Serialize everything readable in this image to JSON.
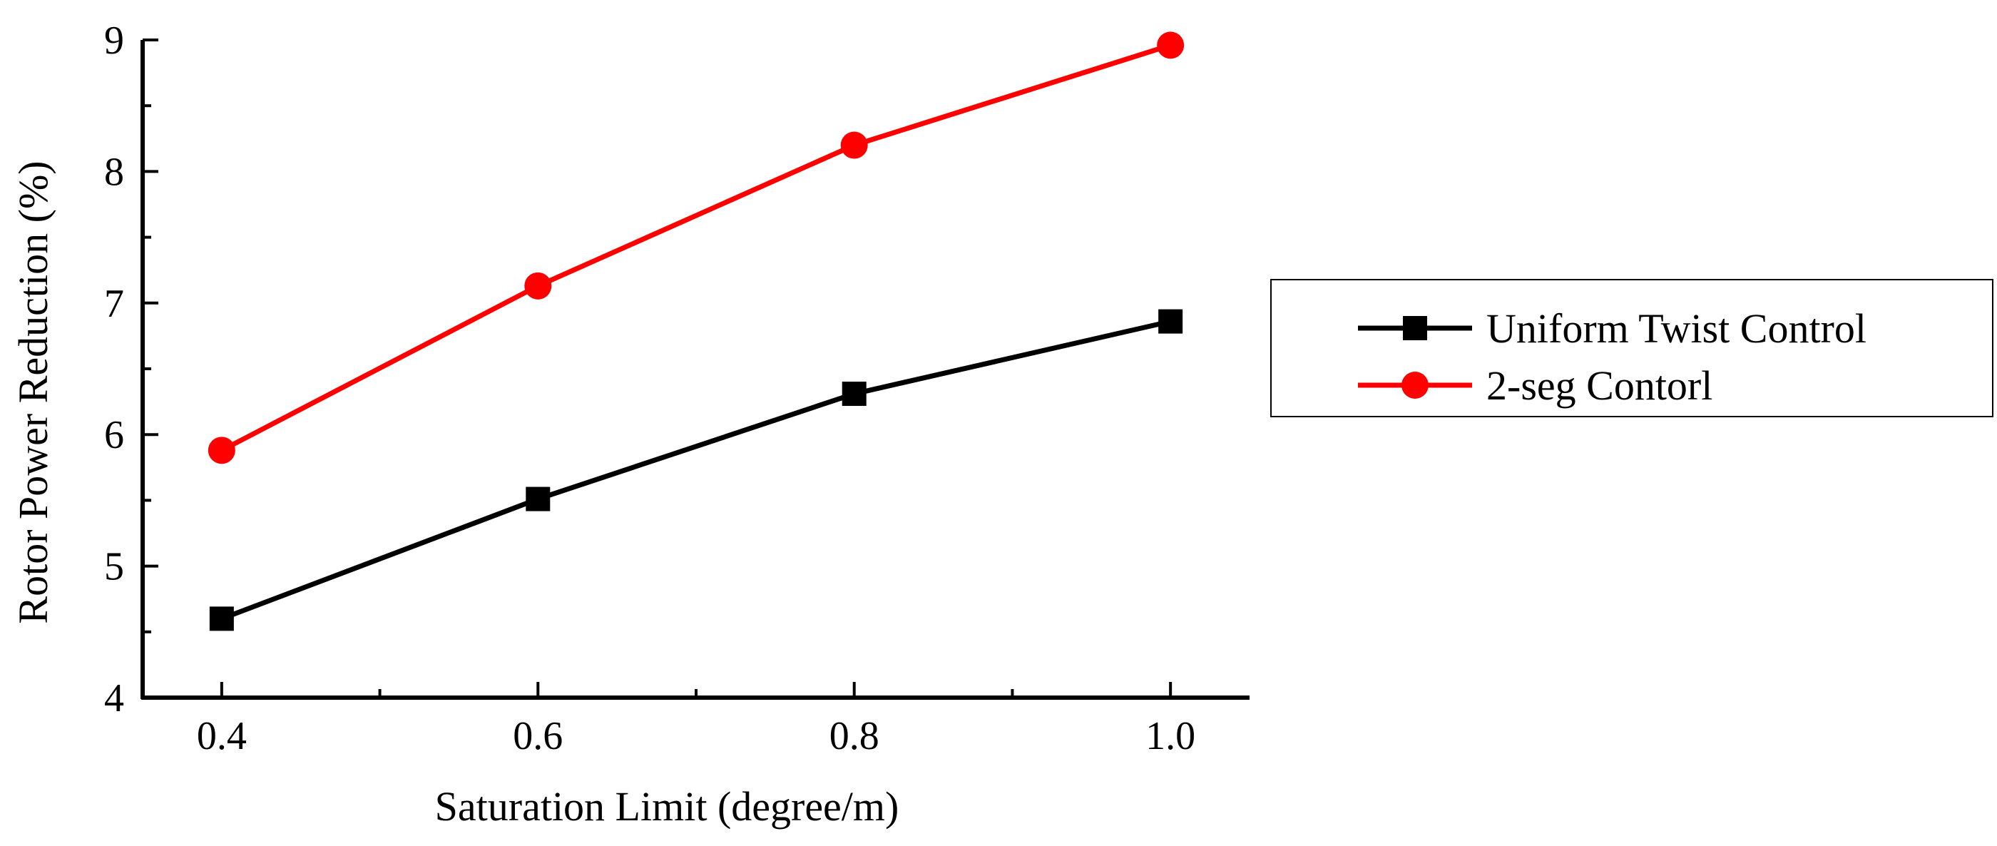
{
  "chart_data": {
    "type": "line",
    "title": "",
    "xlabel": "Saturation Limit (degree/m)",
    "ylabel": "Rotor Power Reduction (%)",
    "xlim": [
      0.35,
      1.05
    ],
    "ylim": [
      4,
      9
    ],
    "x_ticks": [
      0.4,
      0.6,
      0.8,
      1.0
    ],
    "x_tick_labels": [
      "0.4",
      "0.6",
      "0.8",
      "1.0"
    ],
    "y_ticks": [
      4,
      5,
      6,
      7,
      8,
      9
    ],
    "y_tick_labels": [
      "4",
      "5",
      "6",
      "7",
      "8",
      "9"
    ],
    "grid": false,
    "legend_position": "right",
    "x": [
      0.4,
      0.6,
      0.8,
      1.0
    ],
    "series": [
      {
        "name": "Uniform Twist Control",
        "values": [
          4.6,
          5.51,
          6.31,
          6.86
        ],
        "color": "#000000",
        "marker": "square"
      },
      {
        "name": "2-seg Contorl",
        "values": [
          5.88,
          7.13,
          8.2,
          8.96
        ],
        "color": "#ff0000",
        "marker": "circle"
      }
    ]
  }
}
